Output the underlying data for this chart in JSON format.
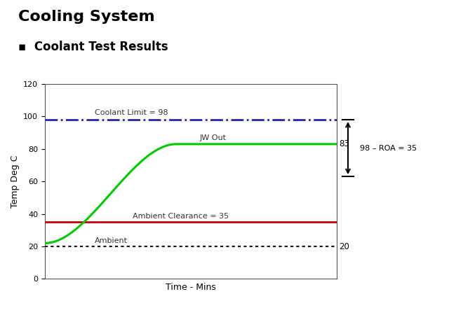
{
  "title": "Cooling System",
  "subtitle": "Coolant Test Results",
  "xlabel": "Time - Mins",
  "ylabel": "Temp Deg C",
  "ylim": [
    0,
    120
  ],
  "xlim": [
    0,
    100
  ],
  "bg_color": "#ffffff",
  "plot_bg_color": "#ffffff",
  "coolant_limit": 98,
  "coolant_limit_label": "Coolant Limit = 98",
  "coolant_limit_color": "#2222bb",
  "ambient_clearance": 35,
  "ambient_clearance_label": "Ambient Clearance = 35",
  "ambient_clearance_color": "#cc0000",
  "ambient_value": 20,
  "ambient_label": "Ambient",
  "ambient_color": "#111111",
  "jw_out_start": 22,
  "jw_out_value": 83,
  "jw_out_label": "JW Out",
  "jw_out_color": "#00cc00",
  "roa_label": "98 – ROA = 35",
  "annotation_83": "83",
  "annotation_20": "20",
  "yticks": [
    0,
    20,
    40,
    60,
    80,
    100,
    120
  ],
  "title_fontsize": 16,
  "subtitle_fontsize": 12,
  "label_fontsize": 8,
  "axis_fontsize": 9
}
